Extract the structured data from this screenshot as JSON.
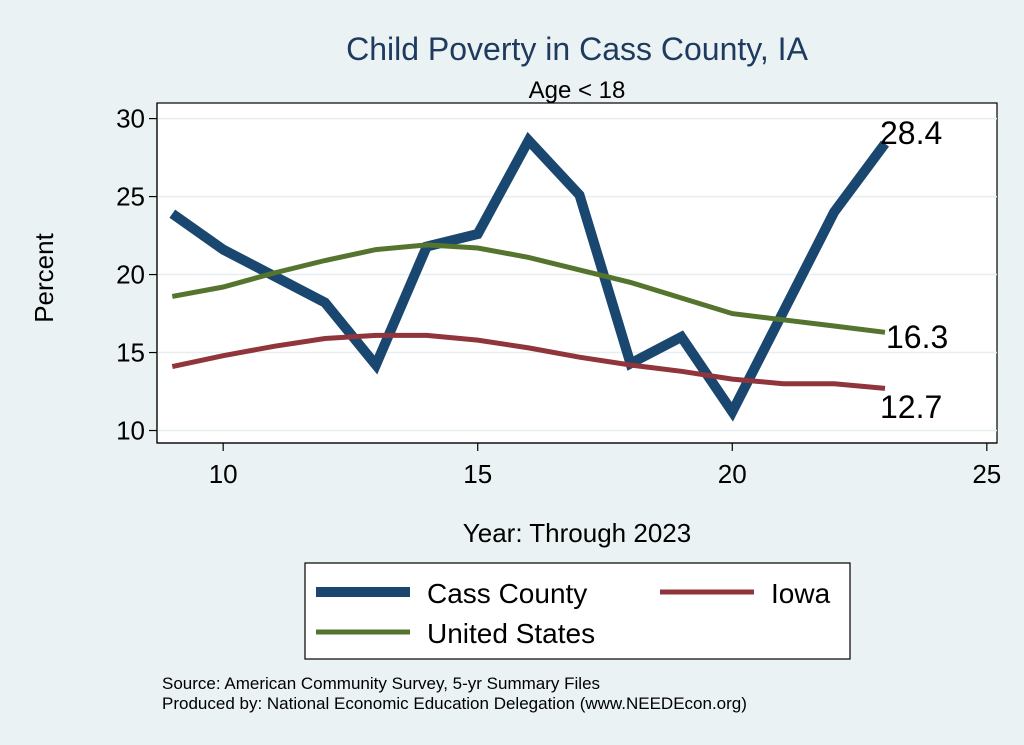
{
  "chart_data": {
    "type": "line",
    "title": "Child Poverty in Cass County, IA",
    "subtitle": "Age < 18",
    "xlabel": "Year: Through 2023",
    "ylabel": "Percent",
    "xlim": [
      8.7,
      25.2
    ],
    "ylim": [
      9.2,
      31.0
    ],
    "xticks": [
      10,
      15,
      20,
      25
    ],
    "yticks": [
      10,
      15,
      20,
      25,
      30
    ],
    "grid": true,
    "legend_position": "bottom",
    "series": [
      {
        "name": "Cass County",
        "color": "#1a476f",
        "x": [
          9,
          10,
          11,
          12,
          13,
          14,
          15,
          16,
          17,
          18,
          19,
          20,
          21,
          22,
          23
        ],
        "y": [
          23.9,
          21.6,
          19.9,
          18.2,
          14.2,
          21.8,
          22.6,
          28.6,
          25.1,
          14.3,
          16.0,
          11.2,
          17.6,
          24.0,
          28.4
        ],
        "end_label": "28.4"
      },
      {
        "name": "Iowa",
        "color": "#90353b",
        "x": [
          9,
          10,
          11,
          12,
          13,
          14,
          15,
          16,
          17,
          18,
          19,
          20,
          21,
          22,
          23
        ],
        "y": [
          14.1,
          14.8,
          15.4,
          15.9,
          16.1,
          16.1,
          15.8,
          15.3,
          14.7,
          14.2,
          13.8,
          13.3,
          13.0,
          13.0,
          12.7
        ],
        "end_label": "12.7"
      },
      {
        "name": "United States",
        "color": "#55752f",
        "x": [
          9,
          10,
          11,
          12,
          13,
          14,
          15,
          16,
          17,
          18,
          19,
          20,
          21,
          22,
          23
        ],
        "y": [
          18.6,
          19.2,
          20.1,
          20.9,
          21.6,
          21.9,
          21.7,
          21.1,
          20.3,
          19.5,
          18.5,
          17.5,
          17.1,
          16.7,
          16.3
        ],
        "end_label": "16.3"
      }
    ]
  },
  "footer": {
    "source": "Source: American Community Survey, 5-yr Summary Files",
    "produced_by": "Produced by: National Economic Education Delegation (www.NEEDEcon.org)"
  }
}
